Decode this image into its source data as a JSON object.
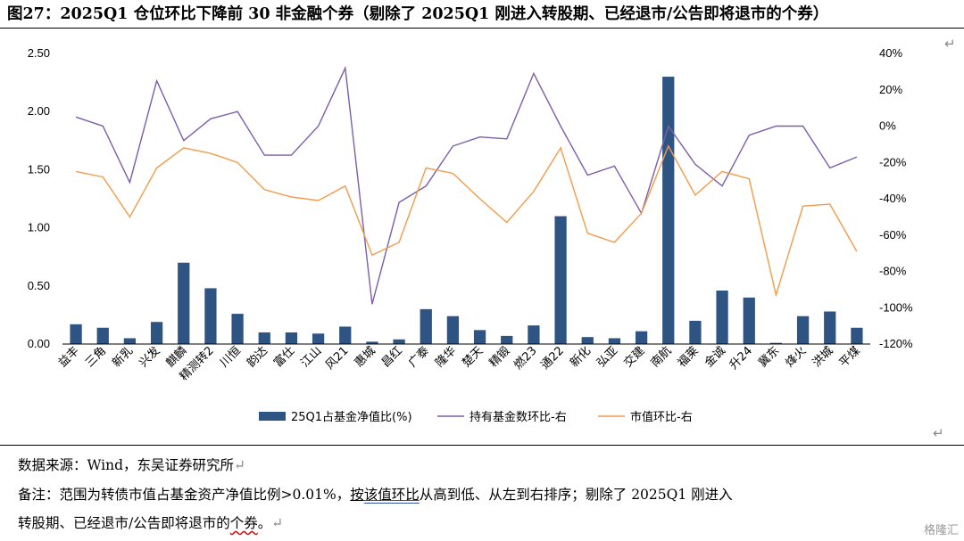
{
  "header": {
    "title": "图27：2025Q1 仓位环比下降前 30 非金融个券（剔除了 2025Q1 刚进入转股期、已经退市/公告即将退市的个券）",
    "return_mark": "↵"
  },
  "chart_data": {
    "type": "bar+line",
    "categories": [
      "益丰",
      "三角",
      "新乳",
      "兴发",
      "麒麟",
      "精测转2",
      "川恒",
      "韵达",
      "富仕",
      "江山",
      "风21",
      "惠城",
      "昌红",
      "广泰",
      "隆华",
      "楚天",
      "精锻",
      "燃23",
      "通22",
      "新化",
      "弘亚",
      "交建",
      "南航",
      "福莱",
      "金诚",
      "升24",
      "冀东",
      "烽火",
      "洪城",
      "平煤"
    ],
    "series": [
      {
        "name": "25Q1占基金净值比(%)",
        "type": "bar",
        "axis": "left",
        "color": "#2e5483",
        "values": [
          0.17,
          0.14,
          0.05,
          0.19,
          0.7,
          0.48,
          0.26,
          0.1,
          0.1,
          0.09,
          0.15,
          0.02,
          0.04,
          0.3,
          0.24,
          0.12,
          0.07,
          0.16,
          1.1,
          0.06,
          0.05,
          0.11,
          2.3,
          0.2,
          0.46,
          0.4,
          0.01,
          0.24,
          0.28,
          0.14
        ]
      },
      {
        "name": "持有基金数环比-右",
        "type": "line",
        "axis": "right",
        "color": "#7b5ea7",
        "values": [
          5,
          0,
          -31,
          25,
          -8,
          4,
          8,
          -16,
          -16,
          0,
          32,
          -98,
          -42,
          -33,
          -11,
          -6,
          -7,
          29,
          0,
          -27,
          -22,
          -48,
          0,
          -21,
          -33,
          -5,
          0,
          0,
          -23,
          -17
        ]
      },
      {
        "name": "市值环比-右",
        "type": "line",
        "axis": "right",
        "color": "#f39b4a",
        "values": [
          -25,
          -28,
          -50,
          -23,
          -12,
          -15,
          -20,
          -35,
          -39,
          -41,
          -33,
          -71,
          -64,
          -23,
          -26,
          -40,
          -53,
          -36,
          -12,
          -59,
          -64,
          -48,
          -11,
          -38,
          -25,
          -29,
          -93,
          -44,
          -43,
          -69
        ]
      }
    ],
    "yleft": {
      "ticks": [
        "0.00",
        "0.50",
        "1.00",
        "1.50",
        "2.00",
        "2.50"
      ],
      "min": 0,
      "max": 2.5
    },
    "yright": {
      "ticks": [
        "-120%",
        "-100%",
        "-80%",
        "-60%",
        "-40%",
        "-20%",
        "0%",
        "20%",
        "40%"
      ],
      "min": -120,
      "max": 40
    },
    "grid": false,
    "legend": "bottom"
  },
  "footer": {
    "source": "数据来源：Wind，东吴证券研究所",
    "note_line1_a": "备注：范围为转债市值占基金资产净值比例>0.01%，",
    "note_line1_b": "按",
    "note_line1_c": "该值环比",
    "note_line1_d": "从高到低、从左到右排序；剔除了 2025Q1 刚进入",
    "note_line2_a": "转股期、已经退市/公告即将退市的",
    "note_line2_b": "个券",
    "note_line2_c": "。",
    "watermark": "格隆汇"
  }
}
